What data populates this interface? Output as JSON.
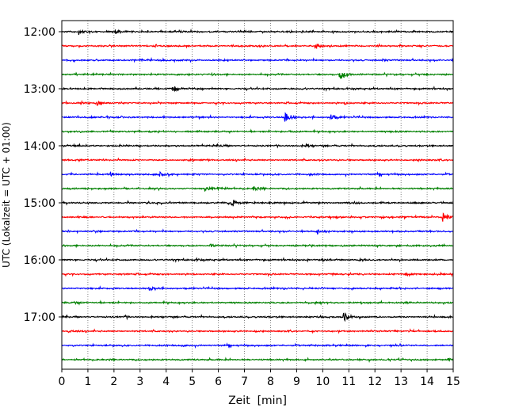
{
  "chart_data": {
    "type": "line",
    "title": "",
    "xlabel": "Zeit  [min]",
    "ylabel": "UTC (Lokalzeit = UTC + 01:00)",
    "xlim": [
      0,
      15
    ],
    "x_ticks": [
      "0",
      "1",
      "2",
      "3",
      "4",
      "5",
      "6",
      "7",
      "8",
      "9",
      "10",
      "11",
      "12",
      "13",
      "14",
      "15"
    ],
    "y_tick_labels": [
      {
        "trace": 0,
        "label": "12:00"
      },
      {
        "trace": 4,
        "label": "13:00"
      },
      {
        "trace": 8,
        "label": "14:00"
      },
      {
        "trace": 12,
        "label": "15:00"
      },
      {
        "trace": 16,
        "label": "16:00"
      },
      {
        "trace": 20,
        "label": "17:00"
      }
    ],
    "grid": "vertical dotted at each minute",
    "trace_interval_min": 15,
    "colors": [
      "#000000",
      "#ff0000",
      "#0000ff",
      "#008000"
    ],
    "traces": [
      {
        "start": "12:00",
        "color": "#000000",
        "events": [
          [
            0.65,
            1.0
          ],
          [
            2.05,
            0.9
          ],
          [
            4.5,
            0.3
          ]
        ]
      },
      {
        "start": "12:15",
        "color": "#ff0000",
        "events": [
          [
            9.7,
            1.3
          ],
          [
            3.6,
            0.3
          ]
        ]
      },
      {
        "start": "12:30",
        "color": "#0000ff",
        "events": [
          [
            6.2,
            0.3
          ],
          [
            12.3,
            0.3
          ]
        ]
      },
      {
        "start": "12:45",
        "color": "#008000",
        "events": [
          [
            10.65,
            2.2
          ],
          [
            1.2,
            0.4
          ],
          [
            13.9,
            0.3
          ]
        ]
      },
      {
        "start": "13:00",
        "color": "#000000",
        "events": [
          [
            4.25,
            1.2
          ],
          [
            9.2,
            0.3
          ]
        ]
      },
      {
        "start": "13:15",
        "color": "#ff0000",
        "events": [
          [
            1.35,
            0.9
          ],
          [
            10.85,
            0.4
          ]
        ]
      },
      {
        "start": "13:30",
        "color": "#0000ff",
        "events": [
          [
            8.55,
            2.5
          ],
          [
            10.3,
            1.3
          ],
          [
            2.2,
            0.3
          ]
        ]
      },
      {
        "start": "13:45",
        "color": "#008000",
        "events": [
          [
            8.7,
            0.4
          ],
          [
            12.6,
            0.3
          ]
        ]
      },
      {
        "start": "14:00",
        "color": "#000000",
        "events": [
          [
            9.35,
            0.6
          ],
          [
            6.1,
            0.3
          ]
        ]
      },
      {
        "start": "14:15",
        "color": "#ff0000",
        "events": [
          [
            4.9,
            0.3
          ],
          [
            13.6,
            0.4
          ]
        ]
      },
      {
        "start": "14:30",
        "color": "#0000ff",
        "events": [
          [
            1.85,
            1.0
          ],
          [
            3.7,
            1.2
          ],
          [
            9.5,
            0.3
          ]
        ]
      },
      {
        "start": "14:45",
        "color": "#008000",
        "events": [
          [
            5.45,
            1.3
          ],
          [
            5.95,
            1.0
          ],
          [
            7.35,
            0.9
          ],
          [
            14.9,
            0.3
          ]
        ]
      },
      {
        "start": "15:00",
        "color": "#000000",
        "events": [
          [
            6.5,
            1.8
          ],
          [
            11.2,
            0.4
          ]
        ]
      },
      {
        "start": "15:15",
        "color": "#ff0000",
        "events": [
          [
            14.6,
            2.3
          ],
          [
            10.5,
            0.4
          ]
        ]
      },
      {
        "start": "15:30",
        "color": "#0000ff",
        "events": [
          [
            9.8,
            0.6
          ],
          [
            1.3,
            0.3
          ]
        ]
      },
      {
        "start": "15:45",
        "color": "#008000",
        "events": [
          [
            5.7,
            0.6
          ],
          [
            9.5,
            0.3
          ]
        ]
      },
      {
        "start": "16:00",
        "color": "#000000",
        "events": [
          [
            5.1,
            0.4
          ],
          [
            11.4,
            0.3
          ]
        ]
      },
      {
        "start": "16:15",
        "color": "#ff0000",
        "events": [
          [
            13.2,
            0.9
          ],
          [
            2.3,
            0.3
          ]
        ]
      },
      {
        "start": "16:30",
        "color": "#0000ff",
        "events": [
          [
            3.35,
            1.2
          ],
          [
            8.5,
            0.3
          ]
        ]
      },
      {
        "start": "16:45",
        "color": "#008000",
        "events": [
          [
            0.5,
            0.4
          ],
          [
            13.1,
            0.3
          ]
        ]
      },
      {
        "start": "17:00",
        "color": "#000000",
        "events": [
          [
            10.8,
            2.0
          ],
          [
            2.4,
            0.3
          ]
        ]
      },
      {
        "start": "17:15",
        "color": "#ff0000",
        "events": [
          [
            0.25,
            0.6
          ],
          [
            7.4,
            0.3
          ]
        ]
      },
      {
        "start": "17:30",
        "color": "#0000ff",
        "events": [
          [
            4.6,
            0.3
          ],
          [
            10.5,
            0.3
          ]
        ]
      },
      {
        "start": "17:45",
        "color": "#008000",
        "events": [
          [
            11.3,
            0.3
          ],
          [
            14.8,
            0.4
          ]
        ]
      }
    ]
  }
}
